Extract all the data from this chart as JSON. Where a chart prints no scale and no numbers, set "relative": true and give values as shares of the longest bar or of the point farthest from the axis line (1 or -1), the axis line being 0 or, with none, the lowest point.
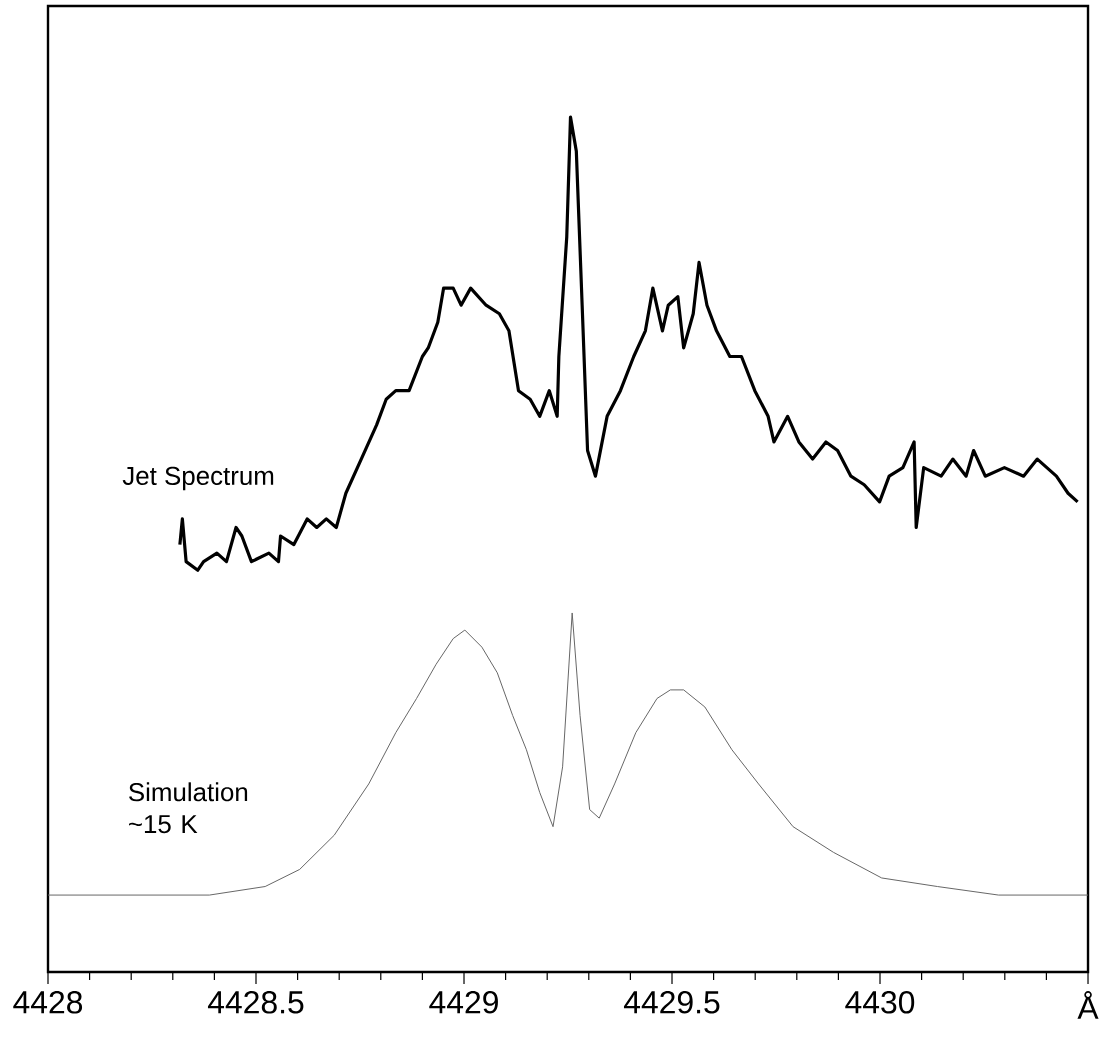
{
  "chart_data": {
    "type": "line",
    "relative": true,
    "xlim": [
      4428,
      4430.5
    ],
    "xticks": [
      4428,
      4428.5,
      4429,
      4429.5,
      4430,
      {
        "value": 4430.5,
        "label": "Å"
      }
    ],
    "series": [
      {
        "name": "Jet Spectrum",
        "color": "#000000",
        "x": [
          4428.317,
          4428.323,
          4428.332,
          4428.36,
          4428.374,
          4428.406,
          4428.429,
          4428.452,
          4428.466,
          4428.489,
          4428.531,
          4428.554,
          4428.559,
          4428.591,
          4428.623,
          4428.646,
          4428.669,
          4428.693,
          4428.716,
          4428.753,
          4428.79,
          4428.813,
          4428.836,
          4428.868,
          4428.9,
          4428.914,
          4428.937,
          4428.951,
          4428.974,
          4428.993,
          4429.016,
          4429.053,
          4429.085,
          4429.108,
          4429.131,
          4429.159,
          4429.182,
          4429.205,
          4429.224,
          4429.228,
          4429.247,
          4429.256,
          4429.27,
          4429.284,
          4429.297,
          4429.316,
          4429.344,
          4429.376,
          4429.408,
          4429.436,
          4429.454,
          4429.477,
          4429.491,
          4429.514,
          4429.528,
          4429.551,
          4429.565,
          4429.584,
          4429.607,
          4429.639,
          4429.667,
          4429.699,
          4429.731,
          4429.745,
          4429.778,
          4429.805,
          4429.838,
          4429.87,
          4429.898,
          4429.93,
          4429.962,
          4429.999,
          4430.022,
          4430.055,
          4430.082,
          4430.087,
          4430.105,
          4430.147,
          4430.175,
          4430.207,
          4430.225,
          4430.253,
          4430.299,
          4430.345,
          4430.378,
          4430.424,
          4430.452,
          4430.475
        ],
        "values": [
          0.5,
          0.53,
          0.48,
          0.47,
          0.48,
          0.49,
          0.48,
          0.52,
          0.51,
          0.48,
          0.49,
          0.48,
          0.51,
          0.5,
          0.53,
          0.52,
          0.53,
          0.52,
          0.56,
          0.6,
          0.64,
          0.67,
          0.68,
          0.68,
          0.72,
          0.73,
          0.76,
          0.8,
          0.8,
          0.78,
          0.8,
          0.78,
          0.77,
          0.75,
          0.68,
          0.67,
          0.65,
          0.68,
          0.65,
          0.72,
          0.86,
          1.0,
          0.96,
          0.78,
          0.61,
          0.58,
          0.65,
          0.68,
          0.72,
          0.75,
          0.8,
          0.75,
          0.78,
          0.79,
          0.73,
          0.77,
          0.83,
          0.78,
          0.75,
          0.72,
          0.72,
          0.68,
          0.65,
          0.62,
          0.65,
          0.62,
          0.6,
          0.62,
          0.61,
          0.58,
          0.57,
          0.55,
          0.58,
          0.59,
          0.62,
          0.52,
          0.59,
          0.58,
          0.6,
          0.58,
          0.61,
          0.58,
          0.59,
          0.58,
          0.6,
          0.58,
          0.56,
          0.55
        ]
      },
      {
        "name": "Simulation ~15 K",
        "color": "#666666",
        "x": [
          4428.0,
          4428.388,
          4428.522,
          4428.605,
          4428.688,
          4428.771,
          4428.836,
          4428.886,
          4428.933,
          4428.974,
          4429.002,
          4429.043,
          4429.08,
          4429.117,
          4429.15,
          4429.182,
          4429.214,
          4429.237,
          4429.26,
          4429.279,
          4429.302,
          4429.325,
          4429.362,
          4429.413,
          4429.464,
          4429.496,
          4429.528,
          4429.579,
          4429.644,
          4429.708,
          4429.791,
          4429.888,
          4430.004,
          4430.138,
          4430.285,
          4430.5
        ],
        "values": [
          0.09,
          0.09,
          0.1,
          0.12,
          0.16,
          0.22,
          0.28,
          0.32,
          0.36,
          0.39,
          0.4,
          0.38,
          0.35,
          0.3,
          0.26,
          0.21,
          0.17,
          0.24,
          0.42,
          0.3,
          0.19,
          0.18,
          0.22,
          0.28,
          0.32,
          0.33,
          0.33,
          0.31,
          0.26,
          0.22,
          0.17,
          0.14,
          0.11,
          0.1,
          0.09,
          0.09
        ]
      }
    ]
  }
}
